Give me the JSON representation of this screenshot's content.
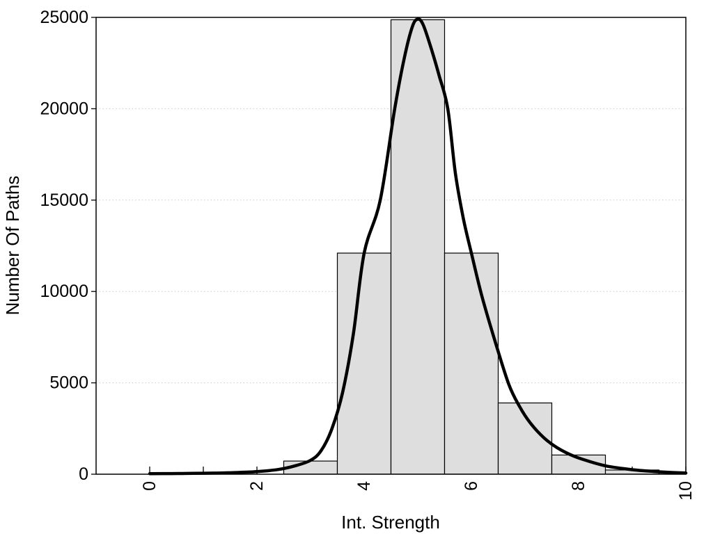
{
  "chart_data": {
    "type": "bar",
    "subtype": "histogram-with-density-curve",
    "title": "",
    "xlabel": "Int. Strength",
    "ylabel": "Number Of Paths",
    "xlim": [
      -1,
      10
    ],
    "ylim": [
      0,
      25000
    ],
    "grid": "horizontal dotted at labeled y ticks",
    "legend": "none",
    "x_ticks": {
      "minor_values": [
        0,
        1,
        2,
        3,
        4,
        5,
        6,
        7,
        8,
        9,
        10
      ],
      "labeled_values": [
        0,
        2,
        4,
        6,
        8,
        10
      ],
      "labels": [
        "0",
        "2",
        "4",
        "6",
        "8",
        "10"
      ],
      "label_rotation_deg": -90
    },
    "y_ticks": {
      "values": [
        0,
        5000,
        10000,
        15000,
        20000,
        25000
      ],
      "labels": [
        "0",
        "5000",
        "10000",
        "15000",
        "20000",
        "25000"
      ],
      "grid_values": [
        5000,
        10000,
        15000,
        20000
      ]
    },
    "bars": {
      "bin_edges": [
        2.5,
        3.5,
        4.5,
        5.5,
        6.5,
        7.5,
        8.5,
        9.5,
        10.5
      ],
      "counts": [
        720,
        12100,
        24870,
        12100,
        3900,
        1050,
        230,
        120
      ]
    },
    "density_curve": {
      "peak_x": 5.0,
      "peak_value": 24900,
      "points": [
        [
          0,
          30
        ],
        [
          0.4,
          35
        ],
        [
          0.8,
          45
        ],
        [
          1.2,
          60
        ],
        [
          1.6,
          90
        ],
        [
          2.0,
          140
        ],
        [
          2.4,
          260
        ],
        [
          2.7,
          450
        ],
        [
          3.0,
          760
        ],
        [
          3.2,
          1300
        ],
        [
          3.4,
          2500
        ],
        [
          3.6,
          4500
        ],
        [
          3.8,
          7700
        ],
        [
          4.0,
          12100
        ],
        [
          4.3,
          15000
        ],
        [
          4.57,
          20000
        ],
        [
          4.75,
          22800
        ],
        [
          4.9,
          24500
        ],
        [
          5.0,
          24900
        ],
        [
          5.1,
          24600
        ],
        [
          5.25,
          23300
        ],
        [
          5.4,
          21800
        ],
        [
          5.56,
          20000
        ],
        [
          5.7,
          16500
        ],
        [
          5.85,
          14000
        ],
        [
          6.0,
          12100
        ],
        [
          6.2,
          9700
        ],
        [
          6.45,
          7200
        ],
        [
          6.7,
          4900
        ],
        [
          6.9,
          3700
        ],
        [
          7.1,
          2800
        ],
        [
          7.35,
          2000
        ],
        [
          7.6,
          1450
        ],
        [
          7.9,
          1000
        ],
        [
          8.2,
          700
        ],
        [
          8.5,
          460
        ],
        [
          8.8,
          320
        ],
        [
          9.1,
          220
        ],
        [
          9.4,
          150
        ],
        [
          9.7,
          100
        ],
        [
          10,
          65
        ]
      ]
    }
  },
  "colors": {
    "background": "#ffffff",
    "frame": "#000000",
    "grid": "#c8c8c8",
    "bar_fill": "#dedede",
    "bar_stroke": "#000000",
    "curve": "#000000",
    "text": "#000000"
  }
}
